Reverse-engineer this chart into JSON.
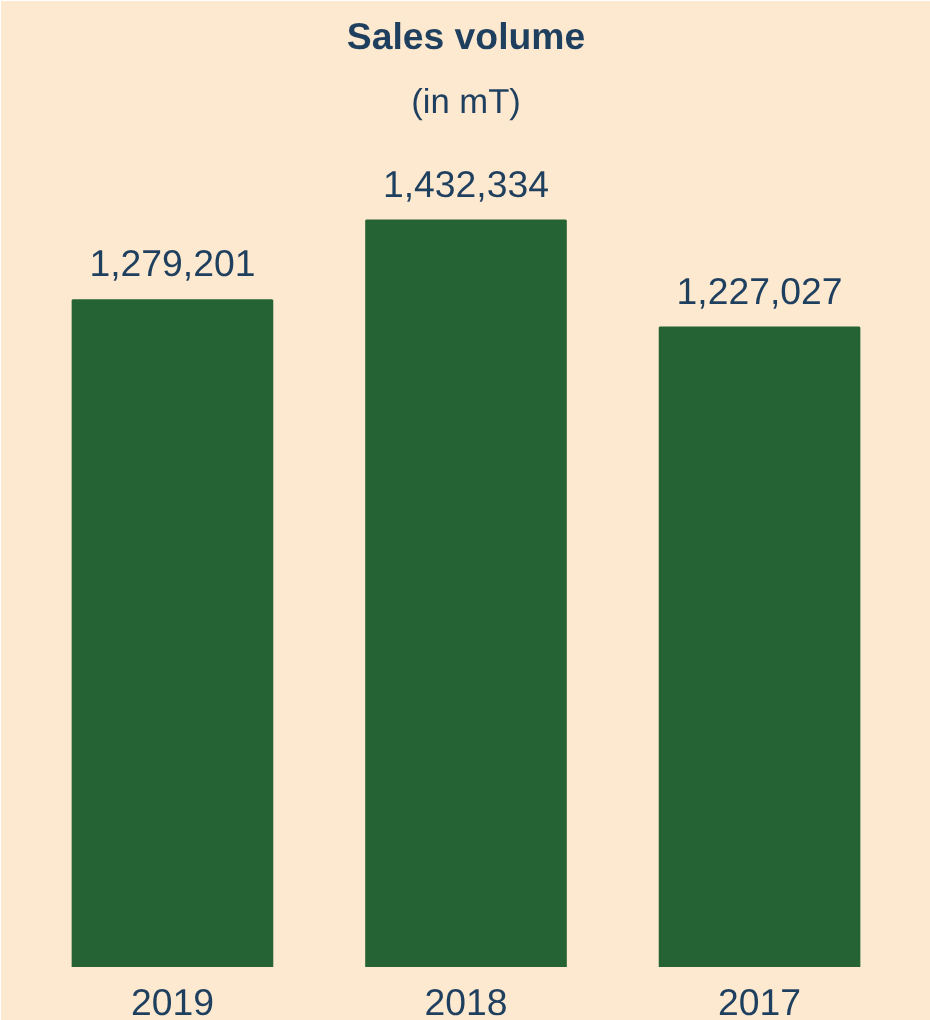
{
  "chart_data": {
    "type": "bar",
    "title": "Sales volume",
    "subtitle": "(in mT)",
    "categories": [
      "2019",
      "2018",
      "2017"
    ],
    "values": [
      1279201,
      1432334,
      1227027
    ],
    "value_labels": [
      "1,279,201",
      "1,432,334",
      "1,227,027"
    ],
    "color": "#256335"
  }
}
